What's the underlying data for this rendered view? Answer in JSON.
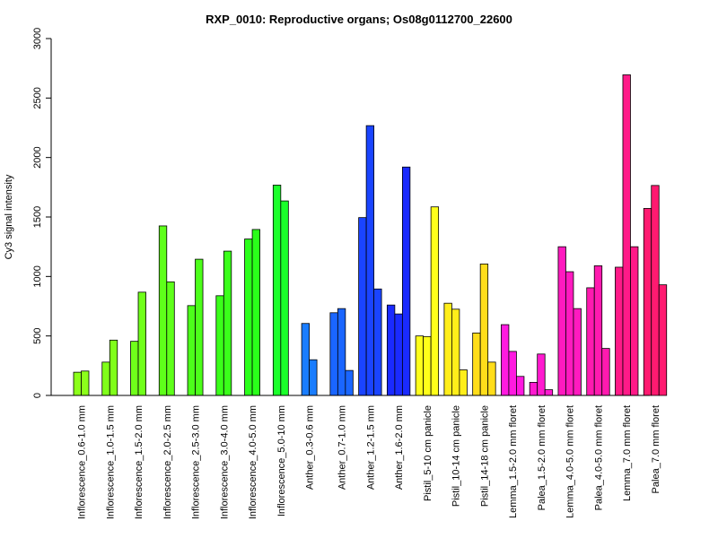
{
  "chart_data": {
    "type": "bar",
    "title": "RXP_0010: Reproductive organs; Os08g0112700_22600",
    "xlabel": "",
    "ylabel": "Cy3 signal intensity",
    "ylim": [
      0,
      3000
    ],
    "yticks": [
      0,
      500,
      1000,
      1500,
      2000,
      2500,
      3000
    ],
    "grid": false,
    "legend": "none",
    "groups": [
      {
        "label": "Inflorescence_0.6-1.0 mm",
        "color": "#8cff1a",
        "values": [
          195,
          205
        ]
      },
      {
        "label": "Inflorescence_1.0-1.5 mm",
        "color": "#80ff1a",
        "values": [
          280,
          465
        ]
      },
      {
        "label": "Inflorescence_1.5-2.0 mm",
        "color": "#70ff1a",
        "values": [
          455,
          868
        ]
      },
      {
        "label": "Inflorescence_2.0-2.5 mm",
        "color": "#5eff1a",
        "values": [
          1425,
          955
        ]
      },
      {
        "label": "Inflorescence_2.5-3.0 mm",
        "color": "#4cff1a",
        "values": [
          755,
          1145
        ]
      },
      {
        "label": "Inflorescence_3.0-4.0 mm",
        "color": "#3aff1a",
        "values": [
          838,
          1213
        ]
      },
      {
        "label": "Inflorescence_4.0-5.0 mm",
        "color": "#2aff1a",
        "values": [
          1315,
          1395
        ]
      },
      {
        "label": "Inflorescence_5.0-10 mm",
        "color": "#1aff2a",
        "values": [
          1768,
          1635
        ]
      },
      {
        "label": "Anther_0.3-0.6 mm",
        "color": "#1a7dff",
        "values": [
          605,
          300
        ]
      },
      {
        "label": "Anther_0.7-1.0 mm",
        "color": "#1a66ff",
        "values": [
          695,
          730,
          210
        ]
      },
      {
        "label": "Anther_1.2-1.5 mm",
        "color": "#1a44ff",
        "values": [
          1495,
          2268,
          895
        ]
      },
      {
        "label": "Anther_1.6-2.0 mm",
        "color": "#1a2aff",
        "values": [
          760,
          685,
          1920
        ]
      },
      {
        "label": "Pistil_5-10 cm panicle",
        "color": "#ffff1a",
        "values": [
          500,
          495,
          1585
        ]
      },
      {
        "label": "Pistil_10-14 cm panicle",
        "color": "#ffee1a",
        "values": [
          775,
          725,
          215
        ]
      },
      {
        "label": "Pistil_14-18 cm panicle",
        "color": "#ffdd1a",
        "values": [
          525,
          1105,
          280
        ]
      },
      {
        "label": "Lemma_1.5-2.0 mm floret",
        "color": "#ff1ae0",
        "values": [
          595,
          370,
          160
        ]
      },
      {
        "label": "Palea_1.5-2.0 mm floret",
        "color": "#ff1ad0",
        "values": [
          110,
          348,
          48
        ]
      },
      {
        "label": "Lemma_4.0-5.0 mm floret",
        "color": "#ff1abf",
        "values": [
          1250,
          1040,
          730
        ]
      },
      {
        "label": "Palea_4.0-5.0 mm floret",
        "color": "#ff1aaf",
        "values": [
          905,
          1090,
          395
        ]
      },
      {
        "label": "Lemma_7.0 mm floret",
        "color": "#ff1a88",
        "values": [
          1078,
          2695,
          1250
        ]
      },
      {
        "label": "Palea_7.0 mm floret",
        "color": "#ff1a70",
        "values": [
          1572,
          1765,
          930
        ]
      }
    ]
  }
}
